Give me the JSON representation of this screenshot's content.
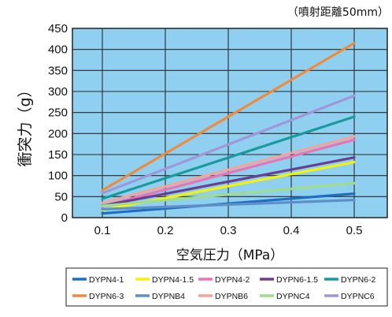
{
  "chart_data": {
    "type": "line",
    "title": "",
    "note": "（噴射距離50mm）",
    "xlabel": "空気圧力（MPa）",
    "ylabel": "衝突力（g）",
    "xlim": [
      0.1,
      0.5
    ],
    "ylim": [
      0,
      450
    ],
    "x_ticks": [
      "0.1",
      "0.2",
      "0.3",
      "0.4",
      "0.5"
    ],
    "y_ticks": [
      "0",
      "50",
      "100",
      "150",
      "200",
      "250",
      "300",
      "350",
      "400",
      "450"
    ],
    "grid": true,
    "legend_position": "bottom",
    "plot_background": "#8fd0f0",
    "x": [
      0.1,
      0.5
    ],
    "series": [
      {
        "name": "DYPN4-1",
        "color": "#1f6fc0",
        "values": [
          10,
          57
        ]
      },
      {
        "name": "DYPN4-1.5",
        "color": "#f5f20a",
        "values": [
          18,
          132
        ]
      },
      {
        "name": "DYPN4-2",
        "color": "#e873b6",
        "values": [
          27,
          185
        ]
      },
      {
        "name": "DYPN6-1.5",
        "color": "#6a3f8f",
        "values": [
          28,
          143
        ]
      },
      {
        "name": "DYPN6-2",
        "color": "#199a9c",
        "values": [
          45,
          240
        ]
      },
      {
        "name": "DYPN6-3",
        "color": "#f08a3c",
        "values": [
          65,
          415
        ]
      },
      {
        "name": "DYPNB4",
        "color": "#5f8ec9",
        "values": [
          20,
          42
        ]
      },
      {
        "name": "DYPNB6",
        "color": "#f3a49a",
        "values": [
          35,
          193
        ]
      },
      {
        "name": "DYPNC4",
        "color": "#9fdc8c",
        "values": [
          28,
          82
        ]
      },
      {
        "name": "DYPNC6",
        "color": "#9f97d9",
        "values": [
          58,
          290
        ]
      }
    ]
  }
}
